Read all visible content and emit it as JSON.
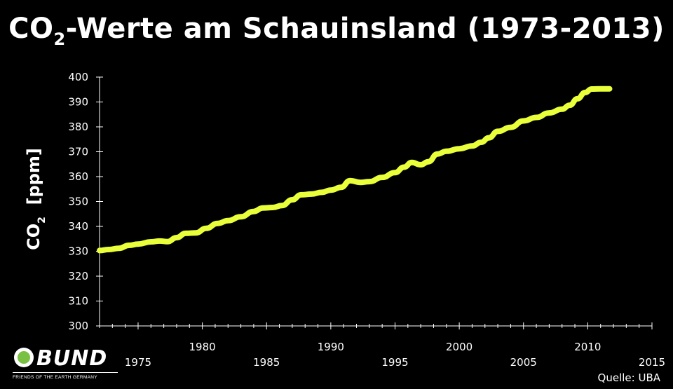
{
  "title": {
    "prefix": "CO",
    "subscript": "2",
    "suffix": "-Werte am Schauinsland (1973-2013)"
  },
  "ylabel": {
    "prefix": "CO",
    "subscript": "2",
    "suffix": "  [ppm]"
  },
  "source": "Quelle: UBA",
  "logo": {
    "word": "BUND",
    "tagline": "FRIENDS OF THE EARTH GERMANY"
  },
  "colors": {
    "background": "#000000",
    "line": "#e8ff3a",
    "axis": "#ffffff",
    "logo_green": "#7ac143"
  },
  "chart_data": {
    "type": "line",
    "title": "CO2-Werte am Schauinsland (1973-2013)",
    "ylabel": "CO2 [ppm]",
    "xlabel": "",
    "xlim": [
      1972,
      2015
    ],
    "ylim": [
      300,
      400
    ],
    "yticks": [
      300,
      310,
      320,
      330,
      340,
      350,
      360,
      370,
      380,
      390,
      400
    ],
    "xticks_upper": [
      1980,
      1990,
      2000,
      2010
    ],
    "xticks_lower": [
      1975,
      1985,
      1995,
      2005,
      2015
    ],
    "grid": false,
    "series": [
      {
        "x": [
          1972.0,
          1972.7,
          1973.5,
          1974.3,
          1975.0,
          1976.0,
          1976.7,
          1977.3,
          1978.0,
          1978.7,
          1979.5,
          1980.3,
          1981.2,
          1982.0,
          1983.0,
          1984.0,
          1984.7,
          1985.5,
          1986.2,
          1987.0,
          1987.7,
          1988.5,
          1989.3,
          1990.0,
          1990.8,
          1991.5,
          1992.3,
          1993.0,
          1994.0,
          1995.0,
          1995.7,
          1996.3,
          1997.0,
          1997.6,
          1998.3,
          1999.0,
          2000.0,
          2001.0,
          2001.7,
          2002.3,
          2003.0,
          2004.0,
          2005.0,
          2006.0,
          2007.0,
          2008.0,
          2008.6,
          2009.2,
          2009.8,
          2010.3,
          2011.0,
          2011.7
        ],
        "y": [
          330.3,
          330.7,
          331.2,
          332.4,
          332.9,
          333.8,
          334.1,
          333.9,
          335.5,
          337.2,
          337.4,
          339.2,
          341.2,
          342.3,
          343.9,
          346.0,
          347.4,
          347.6,
          348.4,
          350.7,
          352.7,
          353.0,
          353.7,
          354.6,
          355.7,
          358.4,
          357.7,
          358.0,
          359.7,
          361.6,
          363.8,
          365.7,
          364.8,
          366.0,
          369.1,
          370.2,
          371.2,
          372.3,
          373.8,
          375.6,
          378.2,
          379.8,
          382.4,
          383.8,
          385.6,
          387.1,
          388.7,
          391.3,
          393.8,
          395.2,
          395.3,
          395.3
        ]
      }
    ]
  }
}
